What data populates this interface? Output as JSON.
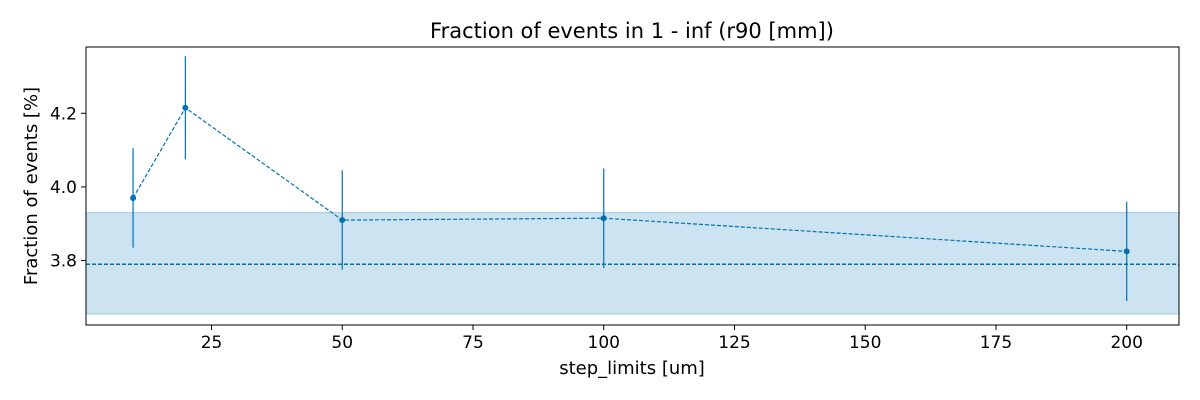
{
  "chart_data": {
    "type": "line",
    "title": "Fraction of events in 1 - inf (r90 [mm])",
    "xlabel": "step_limits [um]",
    "ylabel": "Fraction of events [%]",
    "xlim": [
      1,
      210
    ],
    "ylim": [
      3.625,
      4.38
    ],
    "xticks": [
      25,
      50,
      75,
      100,
      125,
      150,
      175,
      200
    ],
    "yticks": [
      3.8,
      4.0,
      4.2
    ],
    "grid": false,
    "legend": "none",
    "series": [
      {
        "x": [
          10,
          20,
          50,
          100,
          200
        ],
        "y": [
          3.97,
          4.215,
          3.91,
          3.915,
          3.825
        ],
        "yerr": [
          0.135,
          0.14,
          0.135,
          0.135,
          0.135
        ],
        "color": "#0072b2",
        "linestyle": "dashed",
        "marker": "circle"
      }
    ],
    "reference": {
      "value": 3.79,
      "band": [
        3.655,
        3.93
      ],
      "color": "#0072b2",
      "band_color": "#cce3f1",
      "linestyle": "dashed"
    }
  }
}
